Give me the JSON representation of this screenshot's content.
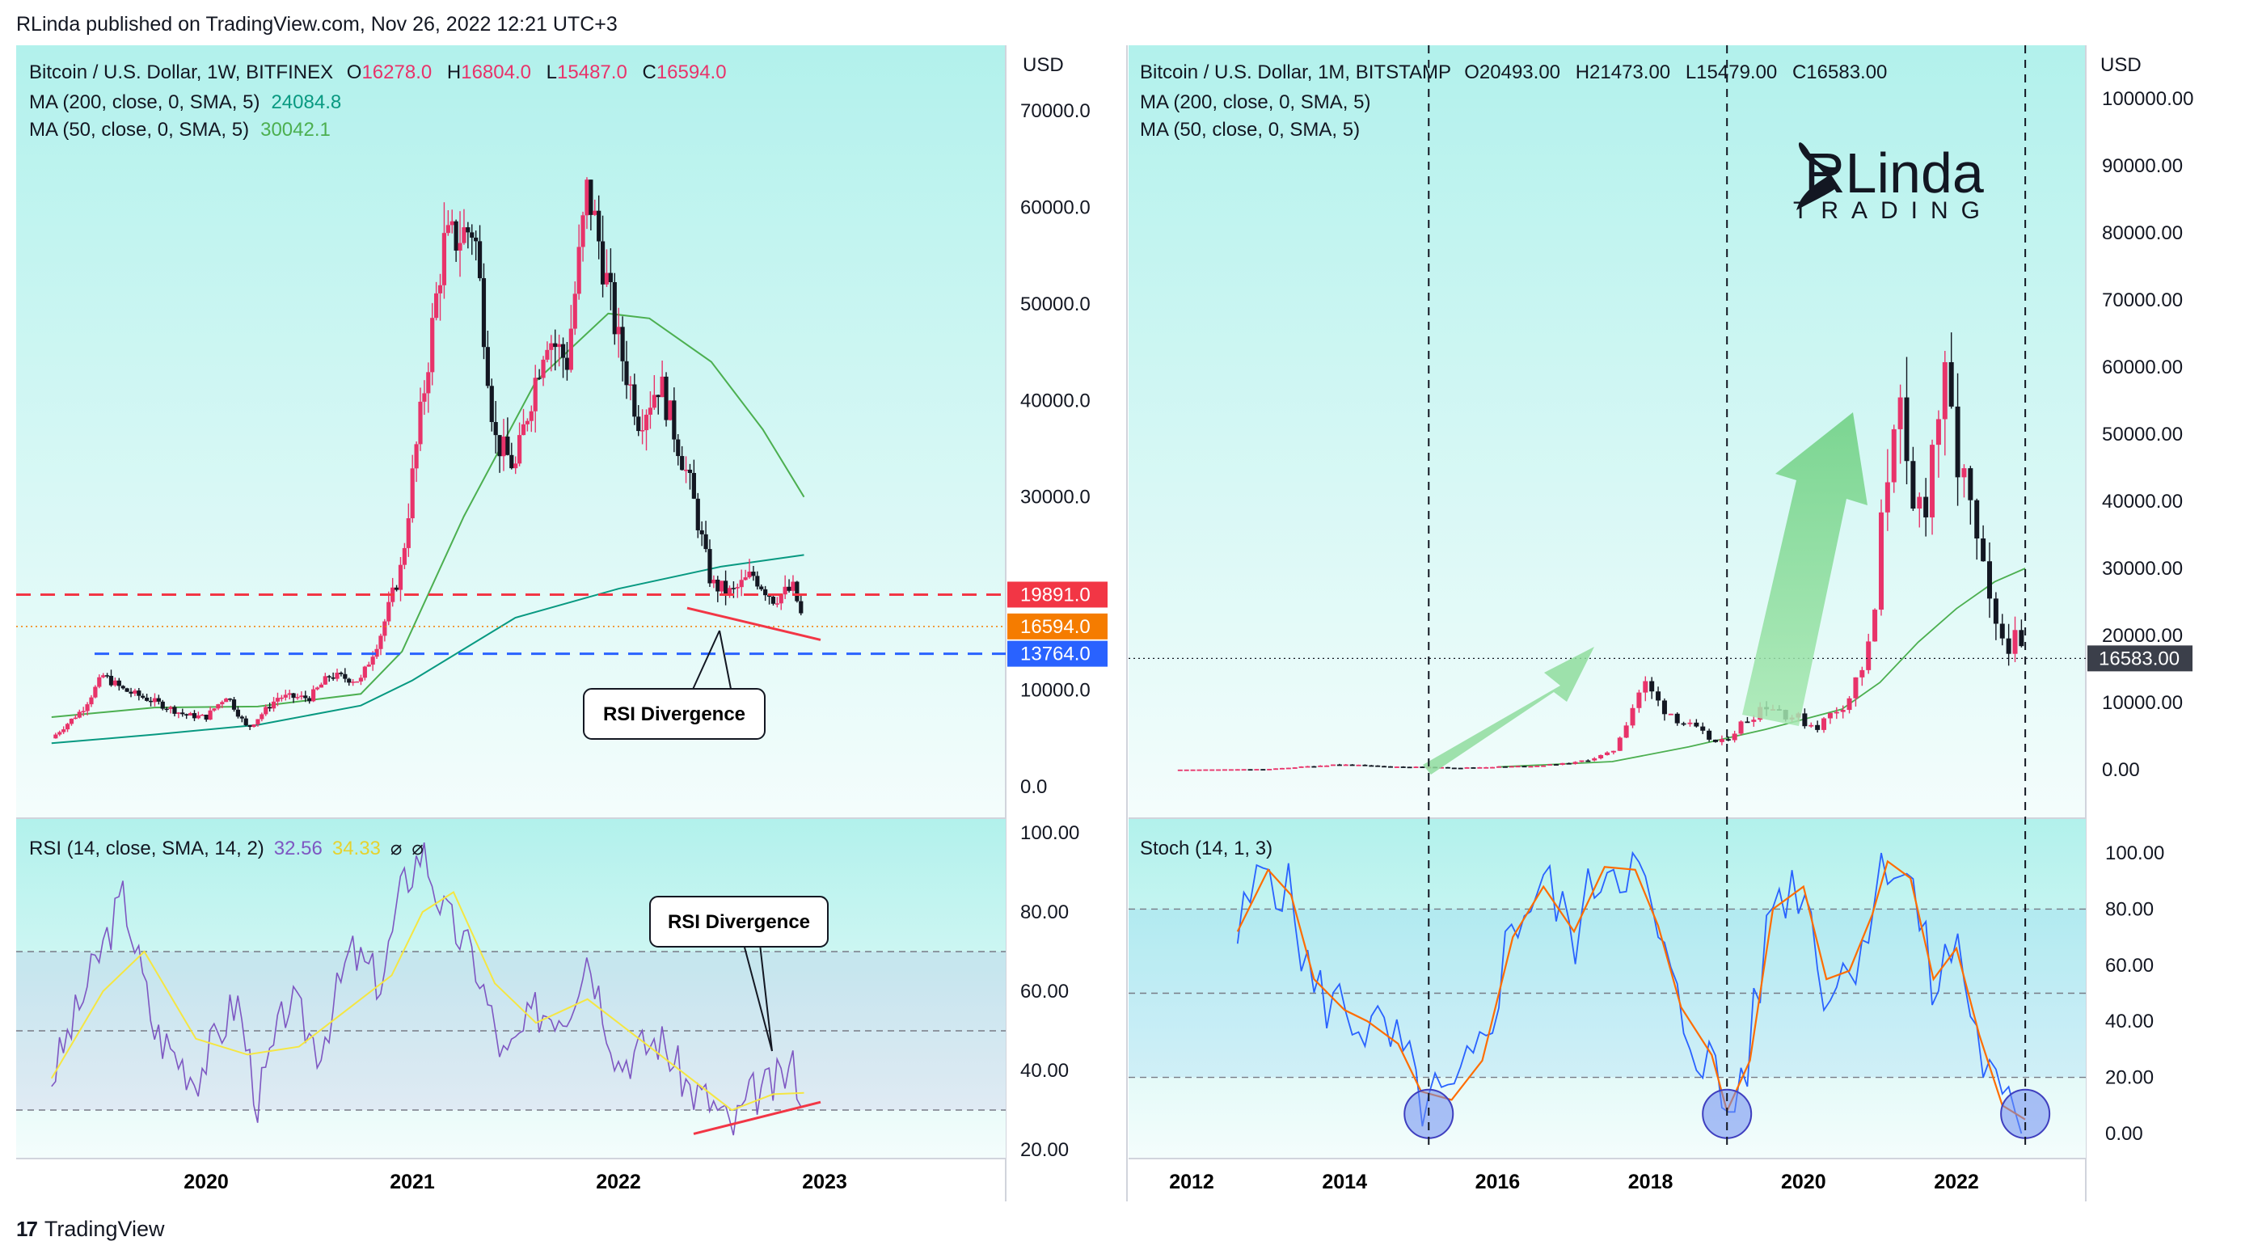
{
  "header": {
    "published": "RLinda published on TradingView.com, Nov 26, 2022 12:21 UTC+3"
  },
  "footer": {
    "logo_glyph": "17",
    "brand": "TradingView"
  },
  "watermark": {
    "line1": "RLinda",
    "line2": "TRADING"
  },
  "colors": {
    "bg": "#b2f1ec",
    "up": "#e8336a",
    "down": "#131722",
    "ma200": "#089981",
    "ma50": "#4caf50",
    "resistance": "#f23645",
    "support": "#2962ff",
    "current": "#f57c00",
    "rsi": "#7e57c2",
    "rsi_ma": "#f5e642",
    "stoch_k": "#2962ff",
    "stoch_d": "#ff6d00",
    "arrow": "#7ed98d"
  },
  "chart_data": [
    {
      "id": "left-price",
      "type": "candlestick",
      "title": "Bitcoin / U.S. Dollar, 1W, BITFINEX",
      "ohlc_label": {
        "o": "O",
        "o_val": "16278.0",
        "h": "H",
        "h_val": "16804.0",
        "l": "L",
        "l_val": "15487.0",
        "c": "C",
        "c_val": "16594.0"
      },
      "indicators": [
        {
          "label": "MA (200, close, 0, SMA, 5)",
          "value": "24084.8"
        },
        {
          "label": "MA (50, close, 0, SMA, 5)",
          "value": "30042.1"
        }
      ],
      "currency": "USD",
      "y_ticks": [
        "70000.0",
        "60000.0",
        "50000.0",
        "40000.0",
        "30000.0",
        "10000.0",
        "0.0"
      ],
      "x_ticks": [
        "2020",
        "2021",
        "2022",
        "2023"
      ],
      "ylim": [
        0,
        70000
      ],
      "levels": [
        {
          "name": "resistance",
          "value": 19891,
          "label": "19891.0"
        },
        {
          "name": "current",
          "value": 16594,
          "label": "16594.0"
        },
        {
          "name": "support",
          "value": 13764,
          "label": "13764.0"
        }
      ],
      "annotation": "RSI Divergence",
      "series": [
        {
          "name": "close",
          "x": [
            2019.25,
            2019.4,
            2019.5,
            2019.6,
            2019.75,
            2019.9,
            2020.0,
            2020.1,
            2020.2,
            2020.35,
            2020.5,
            2020.6,
            2020.75,
            2020.85,
            2020.95,
            2021.0,
            2021.1,
            2021.15,
            2021.3,
            2021.4,
            2021.5,
            2021.55,
            2021.65,
            2021.75,
            2021.85,
            2021.9,
            2022.0,
            2022.1,
            2022.2,
            2022.35,
            2022.45,
            2022.55,
            2022.65,
            2022.75,
            2022.85,
            2022.9
          ],
          "y": [
            5000,
            8000,
            11500,
            10000,
            8800,
            7400,
            7200,
            9500,
            6000,
            9300,
            9200,
            11500,
            11000,
            16000,
            23000,
            32000,
            48000,
            56000,
            58000,
            36000,
            33000,
            38000,
            47000,
            44000,
            62000,
            57000,
            46000,
            38000,
            42000,
            31000,
            21000,
            20000,
            22000,
            19500,
            20500,
            16594
          ]
        },
        {
          "name": "MA (200, close, 0, SMA, 5)",
          "x": [
            2019.25,
            2019.75,
            2020.25,
            2020.75,
            2021.0,
            2021.5,
            2022.0,
            2022.5,
            2022.9
          ],
          "y": [
            4500,
            5400,
            6400,
            8400,
            11000,
            17500,
            20500,
            22800,
            24000
          ]
        },
        {
          "name": "MA (50, close, 0, SMA, 5)",
          "x": [
            2019.25,
            2019.75,
            2020.25,
            2020.75,
            2020.95,
            2021.25,
            2021.6,
            2021.95,
            2022.15,
            2022.45,
            2022.7,
            2022.9
          ],
          "y": [
            7200,
            8200,
            8300,
            9600,
            14000,
            28000,
            42000,
            49000,
            48500,
            44000,
            37000,
            30000
          ]
        }
      ]
    },
    {
      "id": "left-rsi",
      "type": "line",
      "title": "RSI (14, close, SMA, 14, 2)",
      "values_label": [
        "32.56",
        "34.33"
      ],
      "y_ticks": [
        "100.00",
        "80.00",
        "60.00",
        "40.00",
        "20.00"
      ],
      "ylim": [
        20,
        100
      ],
      "bands": [
        70,
        50,
        30
      ],
      "annotation": "RSI Divergence",
      "series": [
        {
          "name": "RSI",
          "x": [
            2019.25,
            2019.45,
            2019.6,
            2019.75,
            2019.95,
            2020.15,
            2020.25,
            2020.4,
            2020.55,
            2020.7,
            2020.85,
            2020.95,
            2021.05,
            2021.15,
            2021.3,
            2021.45,
            2021.6,
            2021.75,
            2021.85,
            2022.0,
            2022.2,
            2022.35,
            2022.45,
            2022.55,
            2022.65,
            2022.75,
            2022.85,
            2022.9
          ],
          "y": [
            38,
            65,
            84,
            50,
            38,
            58,
            32,
            58,
            45,
            70,
            62,
            86,
            96,
            80,
            68,
            42,
            55,
            55,
            70,
            42,
            48,
            35,
            32,
            25,
            34,
            36,
            41,
            32.56
          ]
        },
        {
          "name": "RSI MA",
          "x": [
            2019.25,
            2019.5,
            2019.7,
            2019.95,
            2020.2,
            2020.45,
            2020.65,
            2020.9,
            2021.05,
            2021.2,
            2021.4,
            2021.6,
            2021.85,
            2022.1,
            2022.35,
            2022.55,
            2022.75,
            2022.9
          ],
          "y": [
            38,
            60,
            70,
            48,
            44,
            46,
            54,
            64,
            80,
            85,
            62,
            52,
            58,
            48,
            38,
            30,
            34,
            34.33
          ]
        }
      ]
    },
    {
      "id": "right-price",
      "type": "candlestick",
      "title": "Bitcoin / U.S. Dollar, 1M, BITSTAMP",
      "ohlc_label": {
        "o": "O",
        "o_val": "20493.00",
        "h": "H",
        "h_val": "21473.00",
        "l": "L",
        "l_val": "15479.00",
        "c": "C",
        "c_val": "16583.00"
      },
      "indicators": [
        {
          "label": "MA (200, close, 0, SMA, 5)",
          "value": ""
        },
        {
          "label": "MA (50, close, 0, SMA, 5)",
          "value": ""
        }
      ],
      "currency": "USD",
      "y_ticks": [
        "100000.00",
        "90000.00",
        "80000.00",
        "70000.00",
        "60000.00",
        "50000.00",
        "40000.00",
        "30000.00",
        "20000.00",
        "10000.00",
        "0.00"
      ],
      "x_ticks": [
        "2012",
        "2014",
        "2016",
        "2018",
        "2020",
        "2022"
      ],
      "ylim": [
        0,
        100000
      ],
      "current_label": "16583.00",
      "current_value": 16583,
      "series": [
        {
          "name": "close",
          "x": [
            2011.8,
            2013.0,
            2013.9,
            2014.5,
            2015.5,
            2016.5,
            2017.0,
            2017.5,
            2017.9,
            2018.1,
            2018.5,
            2018.9,
            2019.3,
            2019.5,
            2020.0,
            2020.2,
            2020.6,
            2020.9,
            2021.0,
            2021.2,
            2021.4,
            2021.6,
            2021.8,
            2022.0,
            2022.3,
            2022.5,
            2022.7,
            2022.9
          ],
          "y": [
            10,
            100,
            800,
            500,
            300,
            600,
            1000,
            2500,
            13000,
            10000,
            6500,
            3700,
            8000,
            10000,
            7200,
            6500,
            11000,
            19000,
            33000,
            58000,
            36000,
            42000,
            57000,
            47000,
            31000,
            20000,
            19500,
            16583
          ]
        },
        {
          "name": "MA (50, close, 0, SMA, 5)",
          "x": [
            2016.0,
            2017.5,
            2018.5,
            2019.5,
            2020.5,
            2021.0,
            2021.5,
            2022.0,
            2022.5,
            2022.9
          ],
          "y": [
            400,
            1200,
            3400,
            6000,
            9000,
            13000,
            19000,
            24000,
            28000,
            30000
          ]
        }
      ]
    },
    {
      "id": "right-stoch",
      "type": "line",
      "title": "Stoch (14, 1, 3)",
      "y_ticks": [
        "100.00",
        "80.00",
        "60.00",
        "40.00",
        "20.00",
        "0.00"
      ],
      "ylim": [
        0,
        100
      ],
      "bands": [
        80,
        50,
        20
      ],
      "series": [
        {
          "name": "%K",
          "x": [
            2012.6,
            2013.0,
            2013.3,
            2013.6,
            2014.0,
            2014.3,
            2014.7,
            2015.0,
            2015.4,
            2015.8,
            2016.2,
            2016.6,
            2017.0,
            2017.4,
            2017.8,
            2018.1,
            2018.4,
            2018.8,
            2019.0,
            2019.3,
            2019.6,
            2020.0,
            2020.3,
            2020.6,
            2020.9,
            2021.1,
            2021.4,
            2021.7,
            2022.0,
            2022.3,
            2022.6,
            2022.9
          ],
          "y": [
            70,
            98,
            82,
            50,
            45,
            38,
            30,
            12,
            10,
            30,
            75,
            90,
            70,
            98,
            95,
            70,
            40,
            25,
            5,
            30,
            85,
            90,
            50,
            60,
            80,
            100,
            90,
            50,
            70,
            30,
            8,
            3
          ]
        },
        {
          "name": "%D",
          "x": [
            2012.6,
            2013.0,
            2013.3,
            2013.6,
            2014.0,
            2014.3,
            2014.7,
            2015.0,
            2015.4,
            2015.8,
            2016.2,
            2016.6,
            2017.0,
            2017.4,
            2017.8,
            2018.1,
            2018.4,
            2018.8,
            2019.0,
            2019.3,
            2019.6,
            2020.0,
            2020.3,
            2020.6,
            2020.9,
            2021.1,
            2021.4,
            2021.7,
            2022.0,
            2022.3,
            2022.6,
            2022.9
          ],
          "y": [
            72,
            94,
            85,
            55,
            44,
            40,
            32,
            15,
            12,
            26,
            70,
            88,
            72,
            95,
            94,
            74,
            45,
            28,
            8,
            26,
            80,
            88,
            55,
            58,
            78,
            97,
            91,
            55,
            66,
            35,
            10,
            5
          ]
        }
      ]
    }
  ]
}
